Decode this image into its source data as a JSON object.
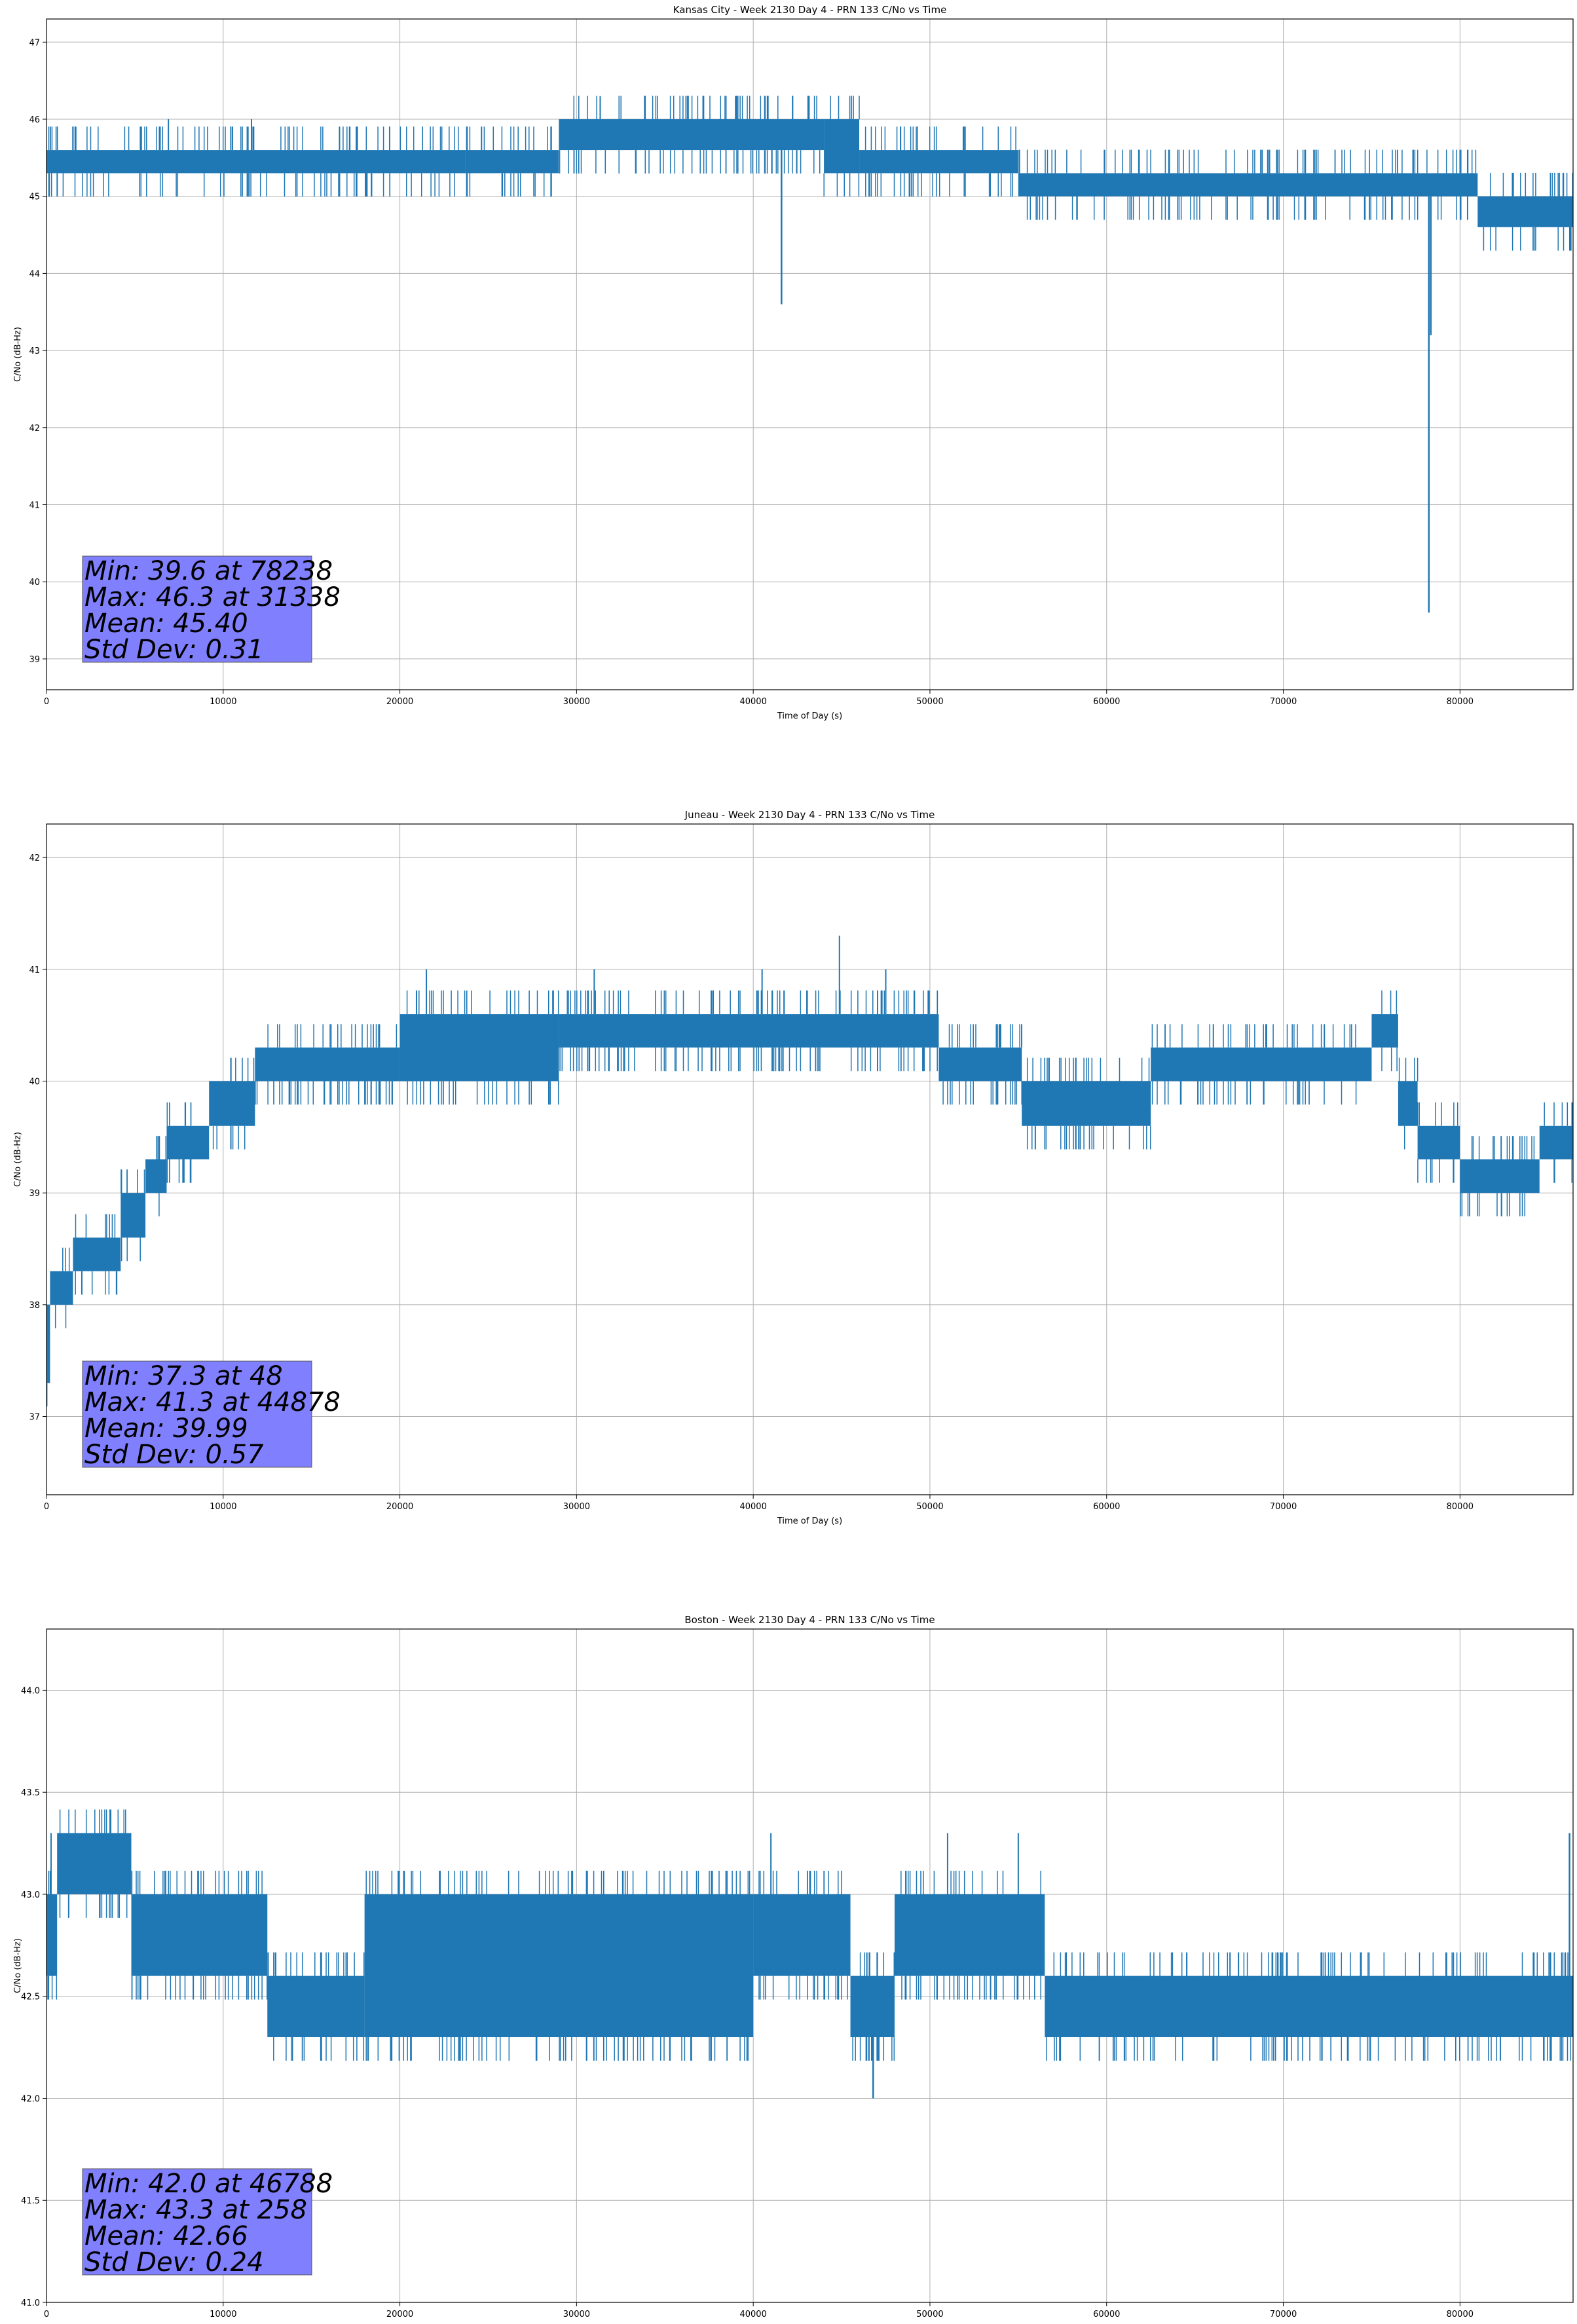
{
  "chart_data": [
    {
      "type": "line",
      "title": "Kansas City - Week 2130 Day 4 - PRN 133 C/No vs Time",
      "xlabel": "Time of Day (s)",
      "ylabel": "C/No (dB-Hz)",
      "xlim": [
        0,
        86400
      ],
      "ylim": [
        38.6,
        47.3
      ],
      "grid": true,
      "color": "#1f77b4",
      "x_ticks": [
        0,
        10000,
        20000,
        30000,
        40000,
        50000,
        60000,
        70000,
        80000
      ],
      "x_tick_labels": [
        "0",
        "10000",
        "20000",
        "30000",
        "40000",
        "50000",
        "60000",
        "70000",
        "80000"
      ],
      "y_ticks": [
        39,
        40,
        41,
        42,
        43,
        44,
        45,
        46,
        47
      ],
      "y_tick_labels": [
        "39",
        "40",
        "41",
        "42",
        "43",
        "44",
        "45",
        "46",
        "47"
      ],
      "series": [
        {
          "bands": [
            {
              "x": [
                0,
                23700
              ],
              "lo": 45.3,
              "hi": 45.6
            },
            {
              "x": [
                23700,
                29000
              ],
              "lo": 45.3,
              "hi": 45.6
            },
            {
              "x": [
                29000,
                44000
              ],
              "lo": 45.6,
              "hi": 46.0
            },
            {
              "x": [
                44000,
                46000
              ],
              "lo": 45.3,
              "hi": 46.0
            },
            {
              "x": [
                46000,
                55000
              ],
              "lo": 45.3,
              "hi": 45.6
            },
            {
              "x": [
                55000,
                81000
              ],
              "lo": 45.0,
              "hi": 45.3
            },
            {
              "x": [
                81000,
                86400
              ],
              "lo": 44.6,
              "hi": 45.0
            }
          ],
          "spikes": [
            [
              41600,
              43.6
            ],
            [
              78238,
              39.6
            ],
            [
              78350,
              43.2
            ]
          ],
          "peaks": [
            [
              31338,
              46.3
            ],
            [
              6900,
              46.0
            ],
            [
              11600,
              46.0
            ],
            [
              39000,
              46.3
            ],
            [
              44800,
              46.0
            ]
          ]
        }
      ],
      "stats": {
        "min": "Min: 39.6 at 78238",
        "max": "Max: 46.3 at 31338",
        "mean": "Mean: 45.40",
        "std": "Std Dev: 0.31"
      }
    },
    {
      "type": "line",
      "title": "Juneau - Week 2130 Day 4 - PRN 133 C/No vs Time",
      "xlabel": "Time of Day (s)",
      "ylabel": "C/No (dB-Hz)",
      "xlim": [
        0,
        86400
      ],
      "ylim": [
        36.3,
        42.3
      ],
      "grid": true,
      "color": "#1f77b4",
      "x_ticks": [
        0,
        10000,
        20000,
        30000,
        40000,
        50000,
        60000,
        70000,
        80000
      ],
      "x_tick_labels": [
        "0",
        "10000",
        "20000",
        "30000",
        "40000",
        "50000",
        "60000",
        "70000",
        "80000"
      ],
      "y_ticks": [
        37,
        38,
        39,
        40,
        41,
        42
      ],
      "y_tick_labels": [
        "37",
        "38",
        "39",
        "40",
        "41",
        "42"
      ],
      "series": [
        {
          "bands": [
            {
              "x": [
                0,
                200
              ],
              "lo": 37.3,
              "hi": 38.0
            },
            {
              "x": [
                200,
                1500
              ],
              "lo": 38.0,
              "hi": 38.3
            },
            {
              "x": [
                1500,
                4200
              ],
              "lo": 38.3,
              "hi": 38.6
            },
            {
              "x": [
                4200,
                5600
              ],
              "lo": 38.6,
              "hi": 39.0
            },
            {
              "x": [
                5600,
                6800
              ],
              "lo": 39.0,
              "hi": 39.3
            },
            {
              "x": [
                6800,
                9200
              ],
              "lo": 39.3,
              "hi": 39.6
            },
            {
              "x": [
                9200,
                11800
              ],
              "lo": 39.6,
              "hi": 40.0
            },
            {
              "x": [
                11800,
                20000
              ],
              "lo": 40.0,
              "hi": 40.3
            },
            {
              "x": [
                20000,
                29000
              ],
              "lo": 40.0,
              "hi": 40.6
            },
            {
              "x": [
                29000,
                50500
              ],
              "lo": 40.3,
              "hi": 40.6
            },
            {
              "x": [
                50500,
                55200
              ],
              "lo": 40.0,
              "hi": 40.3
            },
            {
              "x": [
                55200,
                62500
              ],
              "lo": 39.6,
              "hi": 40.0
            },
            {
              "x": [
                62500,
                75000
              ],
              "lo": 40.0,
              "hi": 40.3
            },
            {
              "x": [
                75000,
                76500
              ],
              "lo": 40.3,
              "hi": 40.6
            },
            {
              "x": [
                76500,
                77600
              ],
              "lo": 39.6,
              "hi": 40.0
            },
            {
              "x": [
                77600,
                80000
              ],
              "lo": 39.3,
              "hi": 39.6
            },
            {
              "x": [
                80000,
                84500
              ],
              "lo": 39.0,
              "hi": 39.3
            },
            {
              "x": [
                84500,
                86400
              ],
              "lo": 39.3,
              "hi": 39.6
            }
          ],
          "spikes": [
            [
              48,
              37.3
            ]
          ],
          "peaks": [
            [
              44878,
              41.3
            ],
            [
              21500,
              41.0
            ],
            [
              31000,
              41.0
            ],
            [
              40500,
              41.0
            ],
            [
              47500,
              41.0
            ]
          ]
        }
      ],
      "stats": {
        "min": "Min: 37.3 at 48",
        "max": "Max: 41.3 at 44878",
        "mean": "Mean: 39.99",
        "std": "Std Dev: 0.57"
      }
    },
    {
      "type": "line",
      "title": "Boston - Week 2130 Day 4 - PRN 133 C/No vs Time",
      "xlabel": "Time of Day (s)",
      "ylabel": "C/No (dB-Hz)",
      "xlim": [
        0,
        86400
      ],
      "ylim": [
        41.0,
        44.3
      ],
      "grid": true,
      "color": "#1f77b4",
      "x_ticks": [
        0,
        10000,
        20000,
        30000,
        40000,
        50000,
        60000,
        70000,
        80000
      ],
      "x_tick_labels": [
        "0",
        "10000",
        "20000",
        "30000",
        "40000",
        "50000",
        "60000",
        "70000",
        "80000"
      ],
      "y_ticks": [
        41.0,
        41.5,
        42.0,
        42.5,
        43.0,
        43.5,
        44.0
      ],
      "y_tick_labels": [
        "41.0",
        "41.5",
        "42.0",
        "42.5",
        "43.0",
        "43.5",
        "44.0"
      ],
      "series": [
        {
          "bands": [
            {
              "x": [
                0,
                600
              ],
              "lo": 42.6,
              "hi": 43.0
            },
            {
              "x": [
                600,
                4800
              ],
              "lo": 43.0,
              "hi": 43.3
            },
            {
              "x": [
                4800,
                12500
              ],
              "lo": 42.6,
              "hi": 43.0
            },
            {
              "x": [
                12500,
                18000
              ],
              "lo": 42.3,
              "hi": 42.6
            },
            {
              "x": [
                18000,
                40000
              ],
              "lo": 42.3,
              "hi": 43.0
            },
            {
              "x": [
                40000,
                45500
              ],
              "lo": 42.6,
              "hi": 43.0
            },
            {
              "x": [
                45500,
                48000
              ],
              "lo": 42.3,
              "hi": 42.6
            },
            {
              "x": [
                48000,
                56500
              ],
              "lo": 42.6,
              "hi": 43.0
            },
            {
              "x": [
                56500,
                86400
              ],
              "lo": 42.3,
              "hi": 42.6
            }
          ],
          "spikes": [
            [
              46788,
              42.0
            ],
            [
              86200,
              43.3
            ]
          ],
          "peaks": [
            [
              258,
              43.3
            ],
            [
              41000,
              43.3
            ],
            [
              51000,
              43.3
            ],
            [
              55000,
              43.3
            ]
          ]
        }
      ],
      "stats": {
        "min": "Min: 42.0 at 46788",
        "max": "Max: 43.3 at 258",
        "mean": "Mean: 42.66",
        "std": "Std Dev: 0.24"
      }
    }
  ]
}
